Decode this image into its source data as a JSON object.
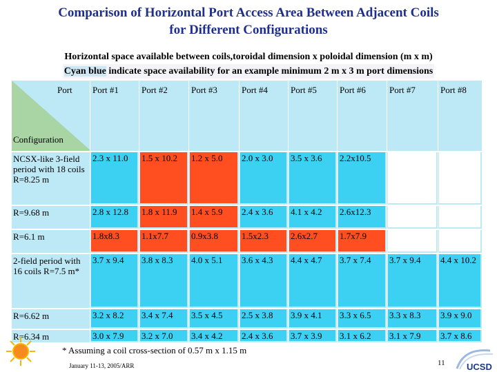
{
  "slide": {
    "title_line1": "Comparison of Horizontal Port Access Area Between Adjacent Coils",
    "title_line2": "for Different Configurations",
    "subtitle_line1": "Horizontal space available between coils,toroidal dimension x poloidal dimension (m x m)",
    "subtitle_line2_hl": "Cyan blue",
    "subtitle_line2_rest": " indicate space availability for an example minimum 2 m x 3 m port dimensions",
    "footnote": "* Assuming a coil cross-section of 0.57 m x 1.15 m",
    "date": "January 11-13, 2005/ARR",
    "page_number": "11",
    "logo_text": "UCSD"
  },
  "table": {
    "corner_top": "Port",
    "corner_bottom": "Configuration",
    "headers": [
      "Port #1",
      "Port #2",
      "Port #3",
      "Port #4",
      "Port #5",
      "Port #6",
      "Port #7",
      "Port #8"
    ],
    "rows": [
      {
        "label": "NCSX-like 3-field period with 18 coils R=8.25 m",
        "cells": [
          {
            "text": "2.3 x 11.0",
            "fill": "cyan"
          },
          {
            "text": "1.5 x 10.2",
            "fill": "orange"
          },
          {
            "text": "1.2 x 5.0",
            "fill": "orange"
          },
          {
            "text": "2.0 x 3.0",
            "fill": "cyan"
          },
          {
            "text": "3.5 x 3.6",
            "fill": "cyan"
          },
          {
            "text": "2.2x10.5",
            "fill": "cyan"
          },
          {
            "text": "",
            "fill": "blank"
          },
          {
            "text": "",
            "fill": "blank"
          }
        ]
      },
      {
        "label": "R=9.68 m",
        "cells": [
          {
            "text": "2.8 x 12.8",
            "fill": "cyan"
          },
          {
            "text": "1.8 x 11.9",
            "fill": "orange"
          },
          {
            "text": "1.4 x 5.9",
            "fill": "orange"
          },
          {
            "text": "2.4 x 3.6",
            "fill": "cyan"
          },
          {
            "text": "4.1 x 4.2",
            "fill": "cyan"
          },
          {
            "text": "2.6x12.3",
            "fill": "cyan"
          },
          {
            "text": "",
            "fill": "blank"
          },
          {
            "text": "",
            "fill": "blank"
          }
        ]
      },
      {
        "label": "R=6.1 m",
        "cells": [
          {
            "text": "1.8x8.3",
            "fill": "orange"
          },
          {
            "text": "1.1x7.7",
            "fill": "orange"
          },
          {
            "text": "0.9x3.8",
            "fill": "orange"
          },
          {
            "text": "1.5x2.3",
            "fill": "orange"
          },
          {
            "text": "2.6x2.7",
            "fill": "orange"
          },
          {
            "text": "1.7x7.9",
            "fill": "orange"
          },
          {
            "text": "",
            "fill": "blank"
          },
          {
            "text": "",
            "fill": "blank"
          }
        ]
      },
      {
        "label": "2-field period with 16 coils R=7.5 m*",
        "cells": [
          {
            "text": "3.7 x 9.4",
            "fill": "cyan"
          },
          {
            "text": "3.8 x 8.3",
            "fill": "cyan"
          },
          {
            "text": "4.0 x 5.1",
            "fill": "cyan"
          },
          {
            "text": "3.6 x 4.3",
            "fill": "cyan"
          },
          {
            "text": "4.4 x 4.7",
            "fill": "cyan"
          },
          {
            "text": "3.7 x 7.4",
            "fill": "cyan"
          },
          {
            "text": "3.7 x 9.4",
            "fill": "cyan"
          },
          {
            "text": "4.4 x 10.2",
            "fill": "cyan"
          }
        ]
      },
      {
        "label": "R=6.62 m",
        "cells": [
          {
            "text": "3.2 x 8.2",
            "fill": "cyan"
          },
          {
            "text": "3.4 x 7.4",
            "fill": "cyan"
          },
          {
            "text": "3.5 x 4.5",
            "fill": "cyan"
          },
          {
            "text": "2.5 x 3.8",
            "fill": "cyan"
          },
          {
            "text": "3.9 x 4.1",
            "fill": "cyan"
          },
          {
            "text": "3.3 x 6.5",
            "fill": "cyan"
          },
          {
            "text": "3.3 x 8.3",
            "fill": "cyan"
          },
          {
            "text": "3.9 x 9.0",
            "fill": "cyan"
          }
        ]
      },
      {
        "label": "R=6.34 m",
        "cells": [
          {
            "text": "3.0 x 7.9",
            "fill": "cyan"
          },
          {
            "text": "3.2 x 7.0",
            "fill": "cyan"
          },
          {
            "text": "3.4 x 4.2",
            "fill": "cyan"
          },
          {
            "text": "2.4 x 3.6",
            "fill": "cyan"
          },
          {
            "text": "3.7 x 3.9",
            "fill": "cyan"
          },
          {
            "text": "3.1 x 6.2",
            "fill": "cyan"
          },
          {
            "text": "3.1 x 7.9",
            "fill": "cyan"
          },
          {
            "text": "3.7 x 8.6",
            "fill": "cyan"
          }
        ]
      }
    ]
  },
  "colors": {
    "title": "#1f2f8f",
    "cyan": "#3cd0f2",
    "orange": "#ff4e1f",
    "table_background": "#bde8f6",
    "corner_green": "#a9d4a3"
  }
}
